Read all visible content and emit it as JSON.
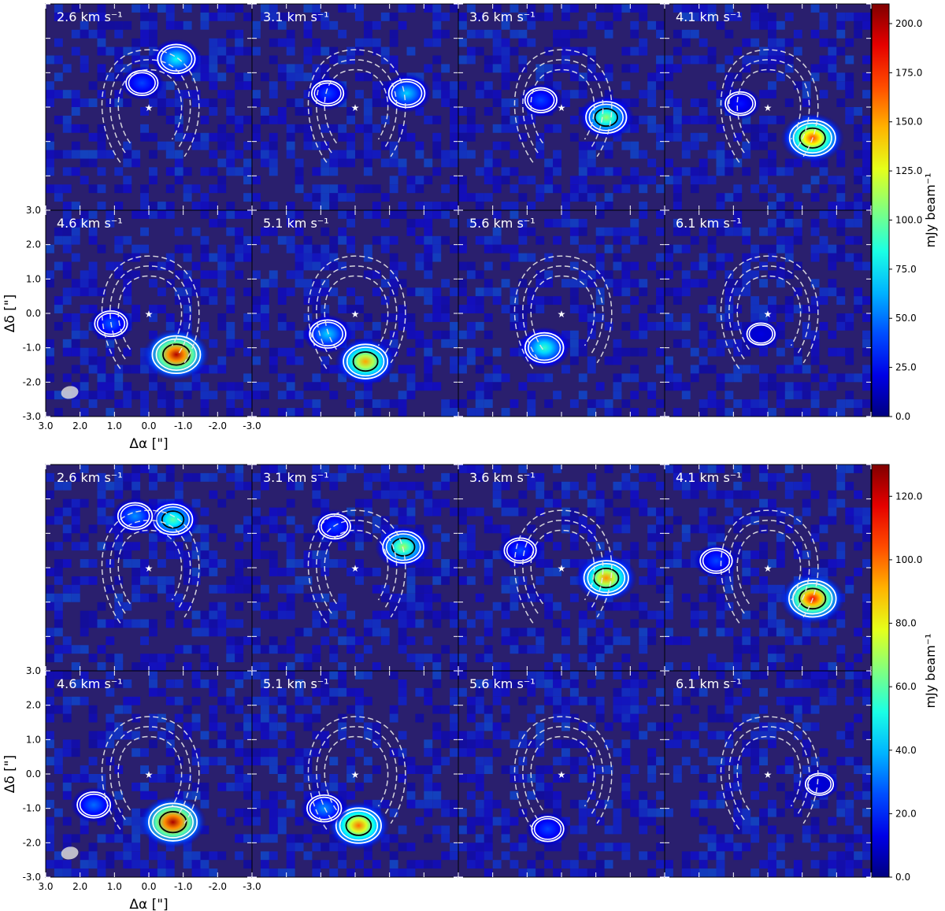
{
  "chart_data": [
    {
      "type": "heatmap",
      "title": "",
      "xlabel": "Δα [\"]",
      "ylabel": "Δδ [\"]",
      "xlim": [
        3.0,
        -3.0
      ],
      "ylim": [
        -3.0,
        3.0
      ],
      "x_ticks": [
        "3.0",
        "2.0",
        "1.0",
        "0.0",
        "-1.0",
        "-2.0",
        "-3.0"
      ],
      "y_ticks": [
        "3.0",
        "2.0",
        "1.0",
        "0.0",
        "-1.0",
        "-2.0",
        "-3.0"
      ],
      "colormap": "jet",
      "colorbar": {
        "label": "mJy beam⁻¹",
        "range": [
          0,
          210
        ],
        "ticks": [
          "0.0",
          "25.0",
          "50.0",
          "75.0",
          "100.0",
          "125.0",
          "150.0",
          "175.0",
          "200.0"
        ]
      },
      "panels": [
        {
          "velocity": "2.6 km s⁻¹",
          "sources": [
            {
              "x": -0.8,
              "y": 1.4,
              "peak": 80
            },
            {
              "x": 0.2,
              "y": 0.7,
              "peak": 40
            }
          ]
        },
        {
          "velocity": "3.1 km s⁻¹",
          "sources": [
            {
              "x": -1.5,
              "y": 0.4,
              "peak": 70
            },
            {
              "x": 0.8,
              "y": 0.4,
              "peak": 40
            }
          ]
        },
        {
          "velocity": "3.6 km s⁻¹",
          "sources": [
            {
              "x": -1.3,
              "y": -0.3,
              "peak": 110
            },
            {
              "x": 0.6,
              "y": 0.2,
              "peak": 40
            }
          ]
        },
        {
          "velocity": "4.1 km s⁻¹",
          "sources": [
            {
              "x": -1.3,
              "y": -0.9,
              "peak": 170
            },
            {
              "x": 0.8,
              "y": 0.1,
              "peak": 30
            }
          ]
        },
        {
          "velocity": "4.6 km s⁻¹",
          "sources": [
            {
              "x": -0.8,
              "y": -1.2,
              "peak": 200
            },
            {
              "x": 1.1,
              "y": -0.3,
              "peak": 45
            }
          ]
        },
        {
          "velocity": "5.1 km s⁻¹",
          "sources": [
            {
              "x": -0.3,
              "y": -1.4,
              "peak": 150
            },
            {
              "x": 0.8,
              "y": -0.6,
              "peak": 70
            }
          ]
        },
        {
          "velocity": "5.6 km s⁻¹",
          "sources": [
            {
              "x": 0.5,
              "y": -1.0,
              "peak": 90
            }
          ]
        },
        {
          "velocity": "6.1 km s⁻¹",
          "sources": [
            {
              "x": 0.2,
              "y": -0.6,
              "peak": 20
            }
          ]
        }
      ]
    },
    {
      "type": "heatmap",
      "title": "",
      "xlabel": "Δα [\"]",
      "ylabel": "Δδ [\"]",
      "xlim": [
        3.0,
        -3.0
      ],
      "ylim": [
        -3.0,
        3.0
      ],
      "x_ticks": [
        "3.0",
        "2.0",
        "1.0",
        "0.0",
        "-1.0",
        "-2.0",
        "-3.0"
      ],
      "y_ticks": [
        "3.0",
        "2.0",
        "1.0",
        "0.0",
        "-1.0",
        "-2.0",
        "-3.0"
      ],
      "colormap": "jet",
      "colorbar": {
        "label": "mJy beam⁻¹",
        "range": [
          0,
          130
        ],
        "ticks": [
          "0.0",
          "20.0",
          "40.0",
          "60.0",
          "80.0",
          "100.0",
          "120.0"
        ]
      },
      "panels": [
        {
          "velocity": "2.6 km s⁻¹",
          "sources": [
            {
              "x": -0.7,
              "y": 1.4,
              "peak": 60
            },
            {
              "x": 0.4,
              "y": 1.5,
              "peak": 35
            }
          ]
        },
        {
          "velocity": "3.1 km s⁻¹",
          "sources": [
            {
              "x": -1.4,
              "y": 0.6,
              "peak": 70
            },
            {
              "x": 0.6,
              "y": 1.2,
              "peak": 25
            }
          ]
        },
        {
          "velocity": "3.6 km s⁻¹",
          "sources": [
            {
              "x": -1.3,
              "y": -0.3,
              "peak": 95
            },
            {
              "x": 1.2,
              "y": 0.5,
              "peak": 25
            }
          ]
        },
        {
          "velocity": "4.1 km s⁻¹",
          "sources": [
            {
              "x": -1.3,
              "y": -0.9,
              "peak": 115
            },
            {
              "x": 1.5,
              "y": 0.2,
              "peak": 25
            }
          ]
        },
        {
          "velocity": "4.6 km s⁻¹",
          "sources": [
            {
              "x": -0.7,
              "y": -1.4,
              "peak": 125
            },
            {
              "x": 1.6,
              "y": -0.9,
              "peak": 30
            }
          ]
        },
        {
          "velocity": "5.1 km s⁻¹",
          "sources": [
            {
              "x": -0.1,
              "y": -1.5,
              "peak": 100
            },
            {
              "x": 0.9,
              "y": -1.0,
              "peak": 35
            }
          ]
        },
        {
          "velocity": "5.6 km s⁻¹",
          "sources": [
            {
              "x": 0.4,
              "y": -1.6,
              "peak": 25
            }
          ]
        },
        {
          "velocity": "6.1 km s⁻¹",
          "sources": [
            {
              "x": -1.5,
              "y": -0.3,
              "peak": 12
            }
          ]
        }
      ]
    }
  ],
  "colors": {
    "background": "#2a1f6e",
    "contour_white": "#ffffff",
    "contour_black": "#000000",
    "star": "#ffffff",
    "beam": "#d8d8d8"
  }
}
